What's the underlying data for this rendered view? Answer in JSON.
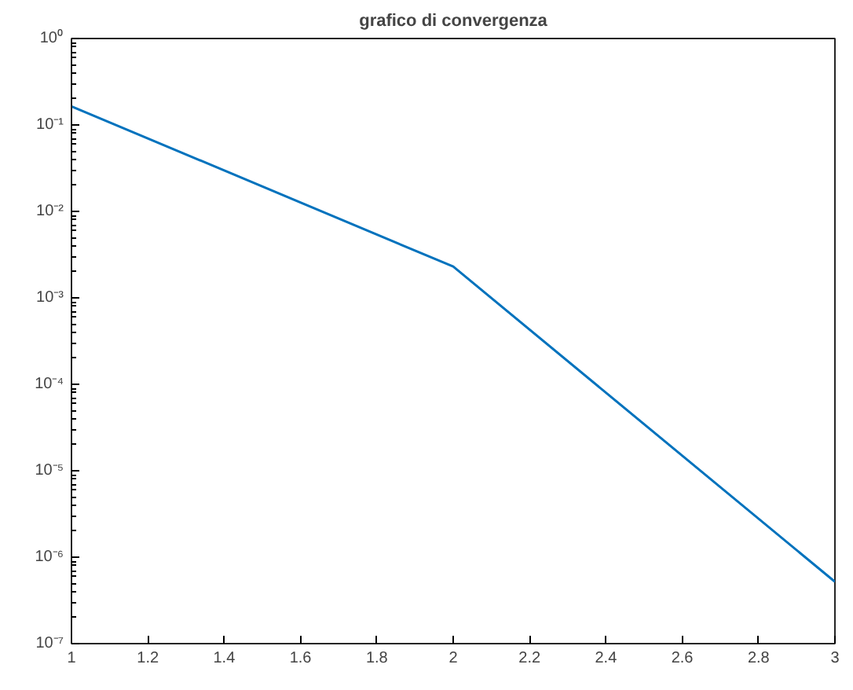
{
  "chart_data": {
    "type": "line",
    "title": "grafico di convergenza",
    "x": [
      1,
      2,
      3
    ],
    "series": [
      {
        "color": "#0072bd",
        "values": [
          0.164,
          0.0023,
          5.2e-07
        ]
      }
    ],
    "log": "y",
    "grid": false,
    "marker": "none",
    "line_style": "solid",
    "xlim": [
      1,
      3
    ],
    "xticks": [
      1,
      1.2,
      1.4,
      1.6,
      1.8,
      2,
      2.2,
      2.4,
      2.6,
      2.8,
      3
    ],
    "ylim": [
      1e-07,
      1
    ],
    "yticks": [
      {
        "value": 1e-07,
        "label": "10⁻⁷"
      },
      {
        "value": 1e-06,
        "label": "10⁻⁶"
      },
      {
        "value": 1e-05,
        "label": "10⁻⁵"
      },
      {
        "value": 0.0001,
        "label": "10⁻⁴"
      },
      {
        "value": 0.001,
        "label": "10⁻³"
      },
      {
        "value": 0.01,
        "label": "10⁻²"
      },
      {
        "value": 0.1,
        "label": "10⁻¹"
      },
      {
        "value": 1,
        "label": "10⁰"
      }
    ]
  }
}
